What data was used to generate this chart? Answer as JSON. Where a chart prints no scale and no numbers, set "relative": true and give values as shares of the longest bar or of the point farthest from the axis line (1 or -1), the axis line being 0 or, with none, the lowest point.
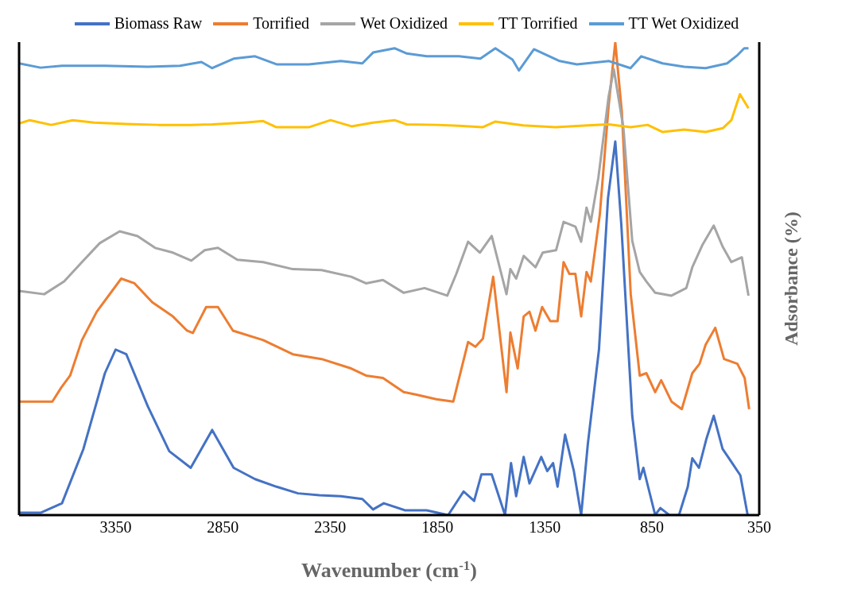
{
  "chart_data": {
    "type": "line",
    "xlabel": "Wavenumber (cm$^{-1}$)",
    "ylabel": "Adsorbance (%)",
    "relative": true,
    "xlim": [
      3800,
      350
    ],
    "xticks": [
      3350,
      2850,
      2350,
      1850,
      1350,
      850,
      350
    ],
    "legend": "top",
    "marker": "none",
    "line_style": "solid",
    "series": [
      {
        "name": "Biomass Raw",
        "color": "#4472c4",
        "x": [
          3800,
          3700,
          3600,
          3500,
          3400,
          3350,
          3300,
          3200,
          3100,
          3000,
          2950,
          2900,
          2850,
          2800,
          2700,
          2600,
          2500,
          2400,
          2300,
          2200,
          2150,
          2100,
          2000,
          1900,
          1800,
          1728,
          1679,
          1645,
          1597,
          1535,
          1507,
          1483,
          1448,
          1421,
          1366,
          1338,
          1311,
          1290,
          1255,
          1214,
          1180,
          1149,
          1097,
          1055,
          1021,
          993,
          942,
          907,
          890,
          835,
          811,
          769,
          724,
          683,
          662,
          631,
          597,
          562,
          521,
          476,
          438,
          404
        ],
        "values": [
          0.005,
          0.005,
          0.025,
          0.14,
          0.3,
          0.35,
          0.34,
          0.23,
          0.135,
          0.1,
          0.14,
          0.18,
          0.14,
          0.1,
          0.076,
          0.06,
          0.046,
          0.042,
          0.04,
          0.034,
          0.012,
          0.025,
          0.01,
          0.01,
          0,
          0.05,
          0.03,
          0.086,
          0.086,
          0,
          0.11,
          0.04,
          0.123,
          0.067,
          0.123,
          0.093,
          0.11,
          0.06,
          0.17,
          0.093,
          0,
          0.15,
          0.35,
          0.67,
          0.79,
          0.615,
          0.21,
          0.076,
          0.1,
          0,
          0.015,
          0,
          0,
          0.06,
          0.12,
          0.1,
          0.16,
          0.21,
          0.14,
          0.11,
          0.084,
          0
        ]
      },
      {
        "name": "Torrified",
        "color": "#ed7d31",
        "x": [
          3800,
          3645,
          3603,
          3562,
          3507,
          3438,
          3324,
          3262,
          3179,
          3083,
          3017,
          2990,
          2928,
          2873,
          2803,
          2662,
          2524,
          2390,
          2252,
          2183,
          2104,
          2007,
          1952,
          1855,
          1776,
          1707,
          1673,
          1638,
          1590,
          1528,
          1510,
          1476,
          1448,
          1421,
          1393,
          1362,
          1324,
          1290,
          1262,
          1235,
          1207,
          1180,
          1155,
          1135,
          1093,
          1052,
          1021,
          990,
          949,
          907,
          876,
          835,
          807,
          759,
          711,
          662,
          628,
          600,
          555,
          514,
          452,
          418,
          397
        ],
        "values": [
          0.24,
          0.24,
          0.27,
          0.295,
          0.37,
          0.43,
          0.5,
          0.49,
          0.45,
          0.42,
          0.39,
          0.385,
          0.44,
          0.44,
          0.39,
          0.37,
          0.34,
          0.33,
          0.31,
          0.295,
          0.29,
          0.26,
          0.255,
          0.245,
          0.24,
          0.366,
          0.356,
          0.373,
          0.504,
          0.26,
          0.386,
          0.31,
          0.42,
          0.43,
          0.39,
          0.44,
          0.41,
          0.41,
          0.535,
          0.51,
          0.51,
          0.42,
          0.514,
          0.494,
          0.636,
          0.865,
          1,
          0.85,
          0.467,
          0.295,
          0.3,
          0.26,
          0.285,
          0.24,
          0.224,
          0.3,
          0.32,
          0.36,
          0.396,
          0.33,
          0.32,
          0.29,
          0.224
        ]
      },
      {
        "name": "Wet Oxidized",
        "color": "#a5a5a5",
        "x": [
          3800,
          3683,
          3590,
          3507,
          3424,
          3331,
          3248,
          3166,
          3083,
          2997,
          2935,
          2873,
          2783,
          2662,
          2524,
          2390,
          2252,
          2183,
          2104,
          2007,
          1910,
          1804,
          1762,
          1707,
          1652,
          1597,
          1528,
          1510,
          1483,
          1448,
          1393,
          1359,
          1297,
          1262,
          1207,
          1180,
          1155,
          1135,
          1100,
          1052,
          1028,
          983,
          942,
          907,
          876,
          835,
          759,
          690,
          662,
          614,
          562,
          521,
          480,
          431,
          400
        ],
        "values": [
          0.474,
          0.467,
          0.494,
          0.535,
          0.575,
          0.6,
          0.59,
          0.565,
          0.555,
          0.538,
          0.56,
          0.565,
          0.54,
          0.535,
          0.52,
          0.518,
          0.504,
          0.49,
          0.497,
          0.47,
          0.48,
          0.464,
          0.51,
          0.578,
          0.555,
          0.59,
          0.467,
          0.52,
          0.5,
          0.548,
          0.524,
          0.555,
          0.56,
          0.62,
          0.61,
          0.578,
          0.65,
          0.62,
          0.713,
          0.885,
          0.943,
          0.818,
          0.58,
          0.514,
          0.494,
          0.47,
          0.464,
          0.48,
          0.524,
          0.572,
          0.612,
          0.568,
          0.535,
          0.545,
          0.464
        ]
      },
      {
        "name": "TT Torrified",
        "color": "#ffc000",
        "x": [
          3800,
          3750,
          3650,
          3550,
          3450,
          3300,
          3150,
          3000,
          2900,
          2750,
          2662,
          2600,
          2450,
          2348,
          2250,
          2150,
          2050,
          1993,
          1850,
          1750,
          1640,
          1580,
          1450,
          1300,
          1150,
          1050,
          950,
          870,
          800,
          700,
          600,
          520,
          480,
          440,
          400
        ],
        "values": [
          0.828,
          0.835,
          0.825,
          0.835,
          0.83,
          0.827,
          0.825,
          0.825,
          0.826,
          0.83,
          0.833,
          0.82,
          0.82,
          0.835,
          0.822,
          0.83,
          0.835,
          0.826,
          0.825,
          0.823,
          0.82,
          0.832,
          0.824,
          0.82,
          0.824,
          0.826,
          0.82,
          0.825,
          0.81,
          0.815,
          0.81,
          0.818,
          0.835,
          0.89,
          0.86
        ]
      },
      {
        "name": "TT Wet Oxidized",
        "color": "#5b9bd5",
        "x": [
          3800,
          3700,
          3600,
          3400,
          3200,
          3050,
          2950,
          2900,
          2800,
          2700,
          2600,
          2450,
          2300,
          2200,
          2150,
          2050,
          1993,
          1900,
          1750,
          1650,
          1580,
          1500,
          1470,
          1400,
          1280,
          1200,
          1050,
          950,
          900,
          800,
          700,
          600,
          500,
          450,
          420,
          400
        ],
        "values": [
          0.955,
          0.946,
          0.95,
          0.95,
          0.948,
          0.95,
          0.958,
          0.945,
          0.965,
          0.97,
          0.953,
          0.953,
          0.96,
          0.955,
          0.978,
          0.987,
          0.976,
          0.97,
          0.97,
          0.965,
          0.987,
          0.963,
          0.94,
          0.985,
          0.96,
          0.953,
          0.96,
          0.945,
          0.97,
          0.955,
          0.948,
          0.945,
          0.955,
          0.973,
          0.987,
          0.987
        ]
      }
    ]
  }
}
